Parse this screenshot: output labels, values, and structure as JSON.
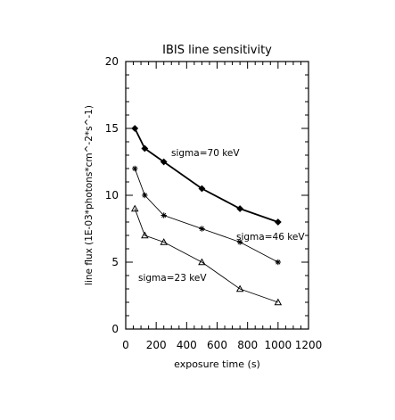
{
  "chart_data": {
    "type": "line",
    "title": "IBIS line sensitivity",
    "xlabel": "exposure time (s)",
    "ylabel": "line flux (1E-03*photons*cm^-2*s^-1)",
    "xlim": [
      0,
      1200
    ],
    "ylim": [
      0,
      20
    ],
    "x_ticks": [
      0,
      200,
      400,
      600,
      800,
      1000,
      1200
    ],
    "y_ticks": [
      0,
      5,
      10,
      15,
      20
    ],
    "grid": false,
    "series": [
      {
        "name": "sigma=70 keV",
        "marker": "diamond",
        "line_style": "solid",
        "line_weight": "bold",
        "x": [
          60,
          125,
          250,
          500,
          750,
          1000
        ],
        "y": [
          15.0,
          13.5,
          12.5,
          10.5,
          9.0,
          8.0
        ]
      },
      {
        "name": "sigma=46 keV",
        "marker": "asterisk",
        "line_style": "solid",
        "line_weight": "thin",
        "x": [
          60,
          125,
          250,
          500,
          750,
          1000
        ],
        "y": [
          12.0,
          10.0,
          8.5,
          7.5,
          6.5,
          5.0
        ]
      },
      {
        "name": "sigma=23 keV",
        "marker": "triangle",
        "line_style": "solid",
        "line_weight": "thin",
        "x": [
          60,
          125,
          250,
          500,
          750,
          1000
        ],
        "y": [
          9.0,
          7.0,
          6.5,
          5.0,
          3.0,
          2.0
        ]
      }
    ],
    "annotations": [
      {
        "text": "sigma=70 keV",
        "series_index": 0
      },
      {
        "text": "sigma=46 keV",
        "series_index": 1
      },
      {
        "text": "sigma=23 keV",
        "series_index": 2
      }
    ]
  }
}
